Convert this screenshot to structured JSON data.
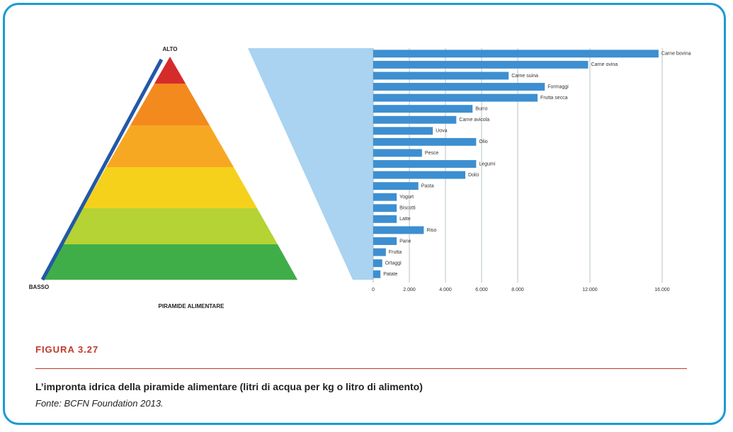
{
  "chart_data": {
    "type": "bar",
    "orientation": "horizontal",
    "categories": [
      "Carne bovina",
      "Carne ovina",
      "Carne suina",
      "Formaggi",
      "Frutta secca",
      "Burro",
      "Carne avicola",
      "Uova",
      "Olio",
      "Pesce",
      "Legumi",
      "Dolci",
      "Pasta",
      "Yogurt",
      "Biscotti",
      "Latte",
      "Riso",
      "Pane",
      "Frutta",
      "Ortaggi",
      "Patate"
    ],
    "values": [
      15800,
      11900,
      7500,
      9500,
      9100,
      5500,
      4600,
      3300,
      5700,
      2700,
      5700,
      5100,
      2500,
      1300,
      1300,
      1300,
      2800,
      1300,
      700,
      500,
      400
    ],
    "color": "#3d8fd1",
    "xlim": [
      0,
      16000
    ],
    "xticks": [
      0,
      {
        "value": 2000,
        "label": "2.000"
      },
      {
        "value": 4000,
        "label": "4.000"
      },
      {
        "value": 6000,
        "label": "6.000"
      },
      {
        "value": 8000,
        "label": "8.000"
      },
      {
        "value": 12000,
        "label": "12.000"
      },
      {
        "value": 16000,
        "label": "16.000"
      }
    ],
    "grid": true
  },
  "pyramid": {
    "title": "PIRAMIDE ALIMENTARE",
    "top_label": "ALTO",
    "bottom_label": "BASSO"
  },
  "figure": {
    "label": "FIGURA 3.27",
    "caption": "L’impronta idrica della piramide alimentare (litri di acqua per kg o litro di alimento)",
    "source": "Fonte: BCFN Foundation 2013."
  }
}
